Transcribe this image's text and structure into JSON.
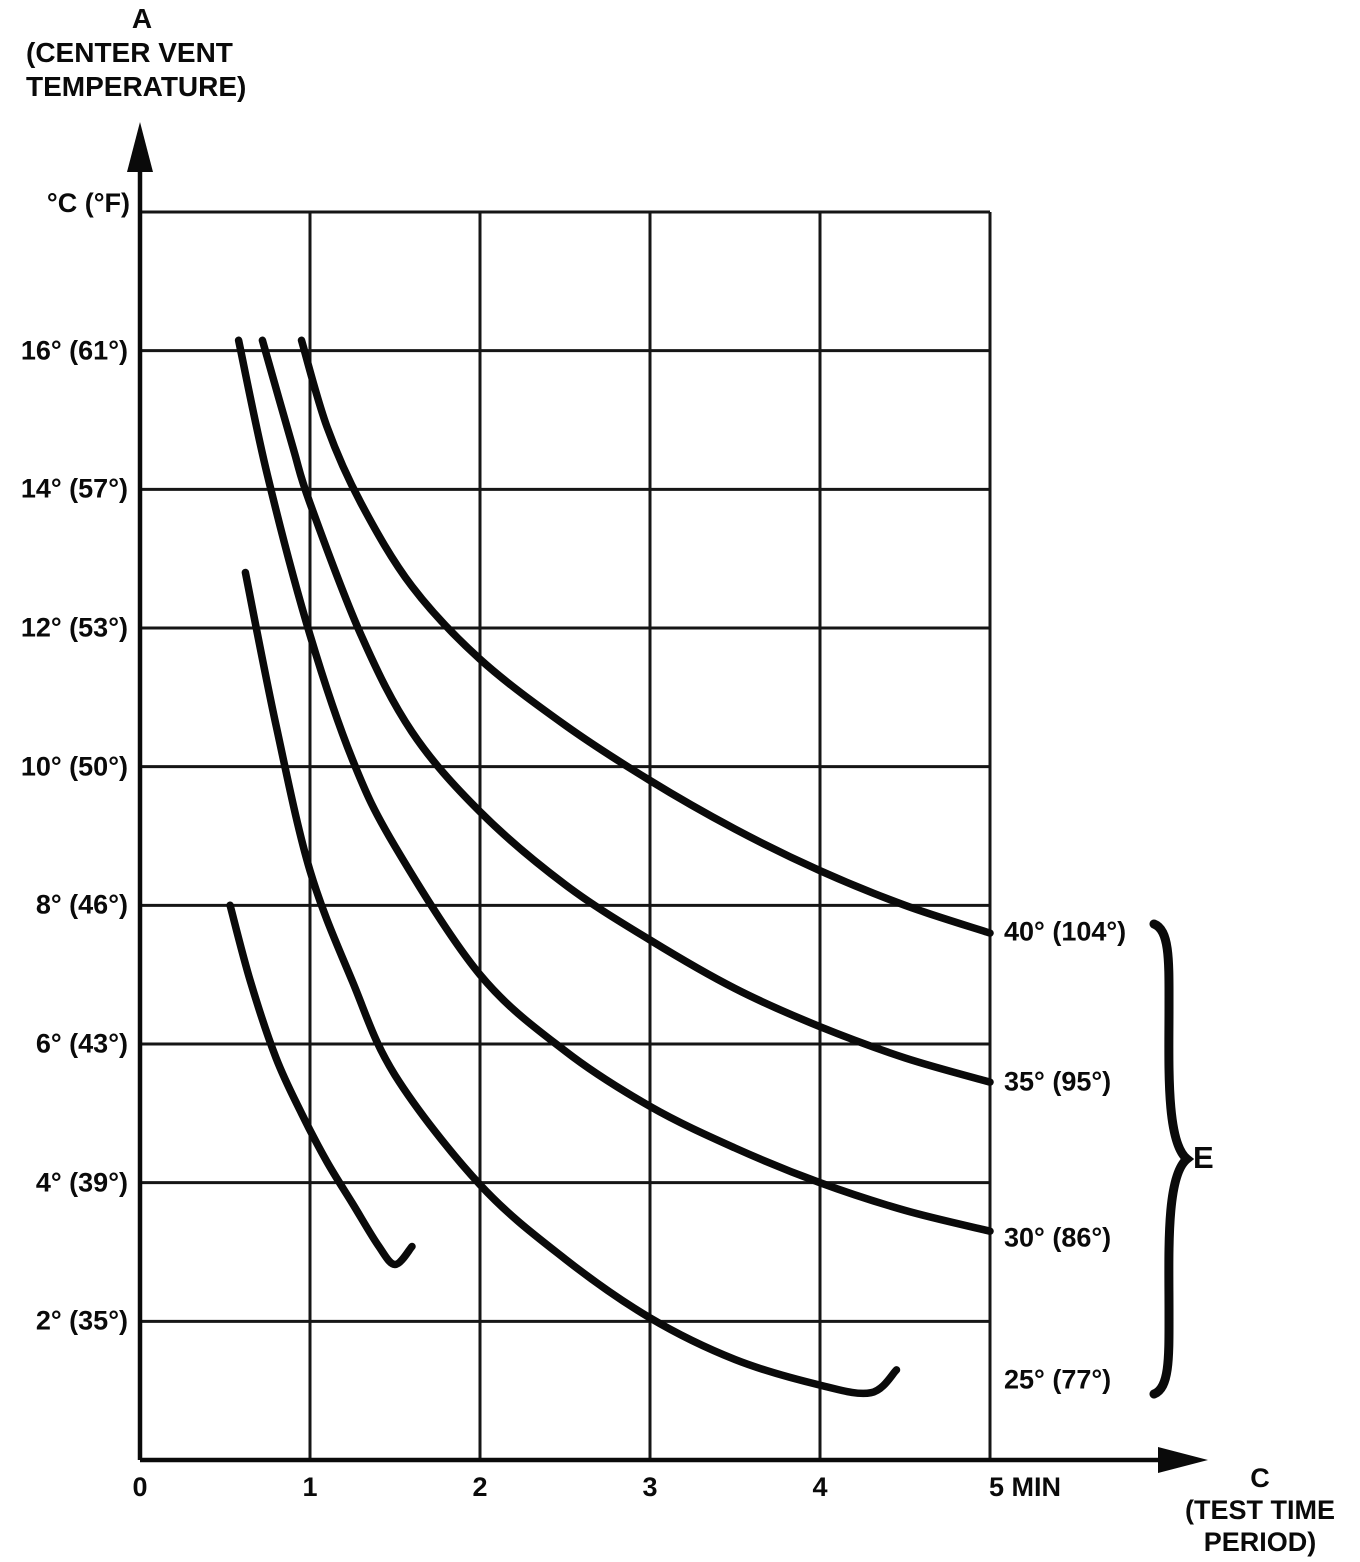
{
  "figure": {
    "y_axis": {
      "symbol": "A",
      "name_line1": "(CENTER VENT",
      "name_line2": "TEMPERATURE)",
      "unit": "°C (°F)"
    },
    "x_axis": {
      "symbol": "C",
      "name_line1": "(TEST TIME",
      "name_line2": "PERIOD)"
    },
    "brace_label": "E"
  },
  "chart_data": {
    "type": "line",
    "xlabel": "C (TEST TIME PERIOD)",
    "ylabel": "A (CENTER VENT TEMPERATURE) °C (°F)",
    "xlim": [
      0,
      5
    ],
    "ylim": [
      0,
      18
    ],
    "grid": true,
    "x_gridlines": [
      0,
      1,
      2,
      3,
      4,
      5
    ],
    "y_gridlines": [
      2,
      4,
      6,
      8,
      10,
      12,
      14,
      16,
      18
    ],
    "x_ticks": [
      {
        "value": 0,
        "label": "0"
      },
      {
        "value": 1,
        "label": "1"
      },
      {
        "value": 2,
        "label": "2"
      },
      {
        "value": 3,
        "label": "3"
      },
      {
        "value": 4,
        "label": "4"
      },
      {
        "value": 5,
        "label": "5 MIN"
      }
    ],
    "y_ticks": [
      {
        "value": 16,
        "label": "16° (61°)"
      },
      {
        "value": 14,
        "label": "14° (57°)"
      },
      {
        "value": 12,
        "label": "12° (53°)"
      },
      {
        "value": 10,
        "label": "10° (50°)"
      },
      {
        "value": 8,
        "label": "8° (46°)"
      },
      {
        "value": 6,
        "label": "6° (43°)"
      },
      {
        "value": 4,
        "label": "4° (39°)"
      },
      {
        "value": 2,
        "label": "2° (35°)"
      }
    ],
    "legend_position": "right-of-curves, grouped by brace labeled E",
    "series": [
      {
        "name": "40° (104°)",
        "points": [
          [
            0.95,
            16.15
          ],
          [
            1.1,
            14.9
          ],
          [
            1.3,
            13.8
          ],
          [
            1.6,
            12.6
          ],
          [
            2.0,
            11.55
          ],
          [
            2.5,
            10.6
          ],
          [
            3.0,
            9.8
          ],
          [
            3.5,
            9.1
          ],
          [
            4.0,
            8.5
          ],
          [
            4.5,
            8.0
          ],
          [
            5.0,
            7.6
          ]
        ]
      },
      {
        "name": "35° (95°)",
        "points": [
          [
            0.72,
            16.15
          ],
          [
            0.9,
            14.6
          ],
          [
            1.0,
            13.8
          ],
          [
            1.3,
            11.9
          ],
          [
            1.6,
            10.5
          ],
          [
            2.0,
            9.35
          ],
          [
            2.5,
            8.3
          ],
          [
            3.0,
            7.5
          ],
          [
            3.5,
            6.8
          ],
          [
            4.0,
            6.25
          ],
          [
            4.5,
            5.8
          ],
          [
            5.0,
            5.45
          ]
        ]
      },
      {
        "name": "30° (86°)",
        "points": [
          [
            0.58,
            16.15
          ],
          [
            0.75,
            14.2
          ],
          [
            1.0,
            11.9
          ],
          [
            1.25,
            10.1
          ],
          [
            1.5,
            8.85
          ],
          [
            2.0,
            7.0
          ],
          [
            2.5,
            5.9
          ],
          [
            3.0,
            5.1
          ],
          [
            3.5,
            4.5
          ],
          [
            4.0,
            4.0
          ],
          [
            4.5,
            3.6
          ],
          [
            5.0,
            3.3
          ]
        ]
      },
      {
        "name": "25° (77°)",
        "points": [
          [
            0.62,
            12.8
          ],
          [
            0.8,
            10.6
          ],
          [
            1.0,
            8.5
          ],
          [
            1.25,
            6.9
          ],
          [
            1.5,
            5.55
          ],
          [
            2.0,
            3.97
          ],
          [
            2.5,
            2.9
          ],
          [
            3.0,
            2.05
          ],
          [
            3.5,
            1.45
          ],
          [
            4.0,
            1.08
          ],
          [
            4.3,
            0.97
          ],
          [
            4.45,
            1.3
          ]
        ]
      },
      {
        "name": "",
        "points": [
          [
            0.53,
            8.0
          ],
          [
            0.65,
            6.9
          ],
          [
            0.8,
            5.8
          ],
          [
            0.95,
            5.0
          ],
          [
            1.1,
            4.3
          ],
          [
            1.25,
            3.7
          ],
          [
            1.4,
            3.1
          ],
          [
            1.5,
            2.82
          ],
          [
            1.6,
            3.08
          ]
        ]
      }
    ]
  }
}
